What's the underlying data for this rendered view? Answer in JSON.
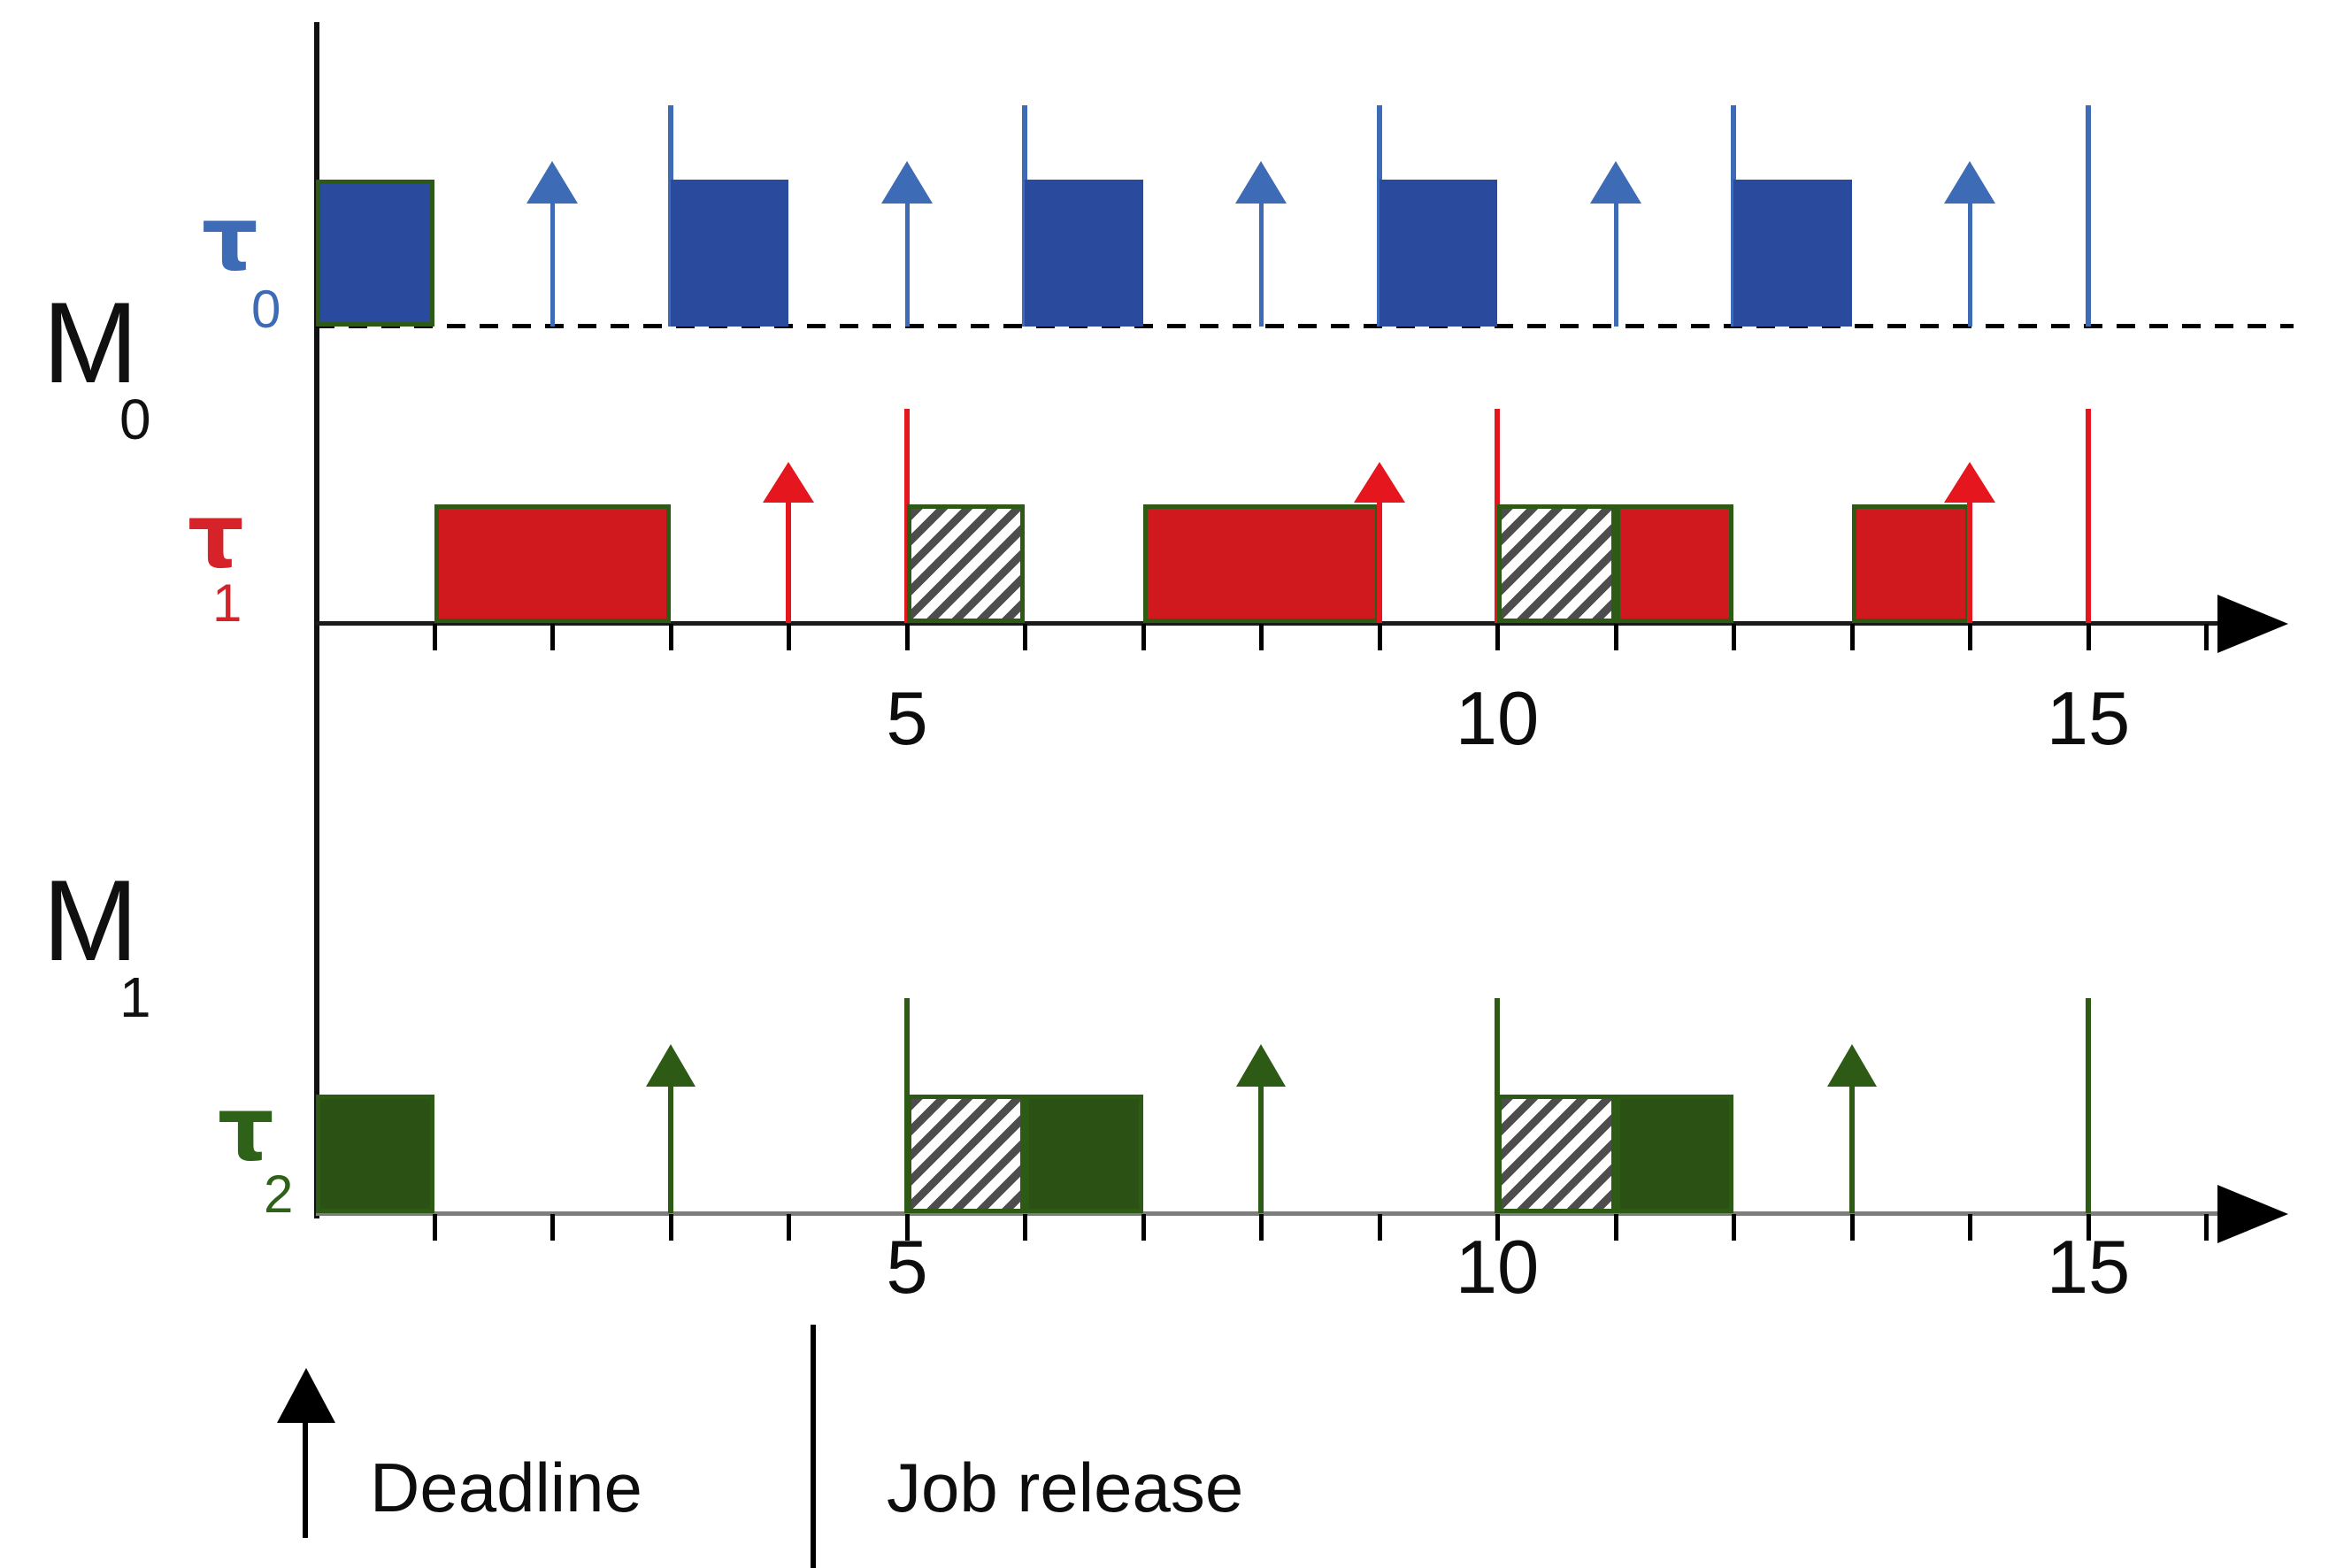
{
  "figure": {
    "type": "multiprocessor-schedule-diagram",
    "time_axis": {
      "start": 0,
      "end": 16,
      "tick_step": 1
    },
    "legend": {
      "deadline_label": "Deadline",
      "job_release_label": "Job release"
    },
    "colors": {
      "tau0_fill": "#2a4a9d",
      "tau0_accent": "#3d6bb5",
      "tau1_fill": "#d0181f",
      "tau1_accent": "#e5161d",
      "tau2_fill": "#2b5214",
      "tau2_accent": "#2d5a14",
      "block_outline_green": "#2d5a14",
      "hatch_stripe": "#4d4d4d",
      "axis_black": "#1a1a1a",
      "axis_gray": "#7d7d7d"
    }
  },
  "machines": [
    {
      "label": "M",
      "subscript": "0",
      "axis": {
        "tick_labels": [
          {
            "t": 5,
            "text": "5"
          },
          {
            "t": 10,
            "text": "10"
          },
          {
            "t": 15,
            "text": "15"
          }
        ]
      },
      "rows": [
        {
          "task": "τ",
          "subscript": "0",
          "key": "tau0",
          "fill": "#2a4a9d",
          "accent": "#3d6bb5",
          "baseline": "dashed",
          "blocks": [
            {
              "start": 0,
              "end": 1,
              "style": "outlined"
            },
            {
              "start": 3,
              "end": 4,
              "style": "plain"
            },
            {
              "start": 6,
              "end": 7,
              "style": "plain"
            },
            {
              "start": 9,
              "end": 10,
              "style": "plain"
            },
            {
              "start": 12,
              "end": 13,
              "style": "plain"
            }
          ],
          "releases": [
            3,
            6,
            9,
            12,
            15
          ],
          "deadlines": [
            2,
            5,
            8,
            11,
            14
          ]
        },
        {
          "task": "τ",
          "subscript": "1",
          "key": "tau1",
          "fill": "#d0181f",
          "accent": "#e5161d",
          "baseline": "axis",
          "blocks": [
            {
              "start": 1,
              "end": 3,
              "style": "outlined"
            },
            {
              "start": 5,
              "end": 6,
              "style": "hatched"
            },
            {
              "start": 7,
              "end": 9,
              "style": "outlined"
            },
            {
              "start": 10,
              "end": 11,
              "style": "hatched"
            },
            {
              "start": 11,
              "end": 12,
              "style": "outlined"
            },
            {
              "start": 13,
              "end": 14,
              "style": "outlined"
            }
          ],
          "releases": [
            5,
            10,
            15
          ],
          "deadlines": [
            4,
            9,
            14
          ]
        }
      ]
    },
    {
      "label": "M",
      "subscript": "1",
      "axis": {
        "tick_labels": [
          {
            "t": 5,
            "text": "5"
          },
          {
            "t": 10,
            "text": "10"
          },
          {
            "t": 15,
            "text": "15"
          }
        ]
      },
      "rows": [
        {
          "task": "τ",
          "subscript": "2",
          "key": "tau2",
          "fill": "#2b5214",
          "accent": "#2d5a14",
          "baseline": "axis",
          "blocks": [
            {
              "start": 0,
              "end": 1,
              "style": "outlined"
            },
            {
              "start": 5,
              "end": 6,
              "style": "hatched"
            },
            {
              "start": 6,
              "end": 7,
              "style": "outlined"
            },
            {
              "start": 10,
              "end": 11,
              "style": "hatched"
            },
            {
              "start": 11,
              "end": 12,
              "style": "outlined"
            }
          ],
          "releases": [
            5,
            10,
            15
          ],
          "deadlines": [
            3,
            8,
            13
          ]
        }
      ]
    }
  ]
}
